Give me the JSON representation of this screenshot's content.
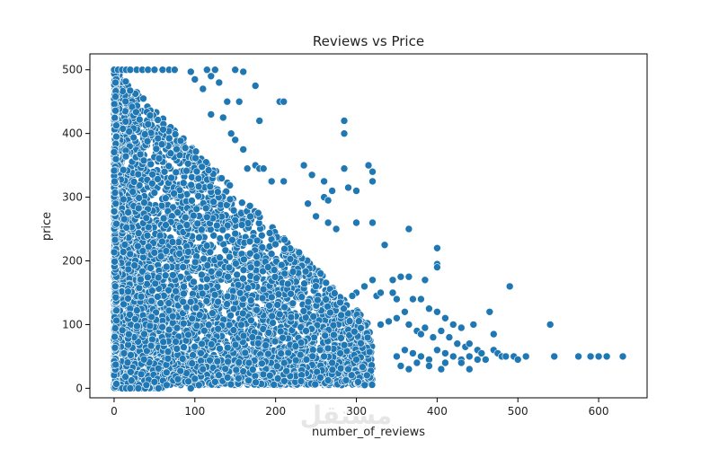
{
  "watermark": "مستقل",
  "chart_data": {
    "type": "scatter",
    "title": "Reviews vs Price",
    "xlabel": "number_of_reviews",
    "ylabel": "price",
    "xlim": [
      -30,
      660
    ],
    "ylim": [
      -15,
      525
    ],
    "x_ticks": [
      0,
      100,
      200,
      300,
      400,
      500,
      600
    ],
    "y_ticks": [
      0,
      100,
      200,
      300,
      400,
      500
    ],
    "grid": false,
    "marker_color": "#1f77b4",
    "marker_edge": "#ffffff",
    "dense_region": {
      "description_note": "very dense overplotted cloud",
      "x_range": [
        0,
        320
      ],
      "y_range": [
        0,
        500
      ]
    },
    "points": [
      [
        0,
        500
      ],
      [
        5,
        500
      ],
      [
        10,
        500
      ],
      [
        15,
        500
      ],
      [
        20,
        500
      ],
      [
        28,
        500
      ],
      [
        35,
        500
      ],
      [
        42,
        500
      ],
      [
        50,
        500
      ],
      [
        60,
        500
      ],
      [
        68,
        500
      ],
      [
        75,
        500
      ],
      [
        95,
        497
      ],
      [
        115,
        500
      ],
      [
        125,
        500
      ],
      [
        150,
        500
      ],
      [
        160,
        497
      ],
      [
        100,
        485
      ],
      [
        110,
        470
      ],
      [
        120,
        490
      ],
      [
        130,
        480
      ],
      [
        140,
        450
      ],
      [
        155,
        450
      ],
      [
        175,
        475
      ],
      [
        205,
        450
      ],
      [
        210,
        450
      ],
      [
        120,
        430
      ],
      [
        135,
        425
      ],
      [
        180,
        420
      ],
      [
        285,
        420
      ],
      [
        285,
        400
      ],
      [
        145,
        400
      ],
      [
        150,
        390
      ],
      [
        160,
        375
      ],
      [
        165,
        345
      ],
      [
        175,
        350
      ],
      [
        180,
        345
      ],
      [
        185,
        345
      ],
      [
        195,
        325
      ],
      [
        210,
        325
      ],
      [
        235,
        350
      ],
      [
        245,
        335
      ],
      [
        260,
        325
      ],
      [
        270,
        310
      ],
      [
        285,
        345
      ],
      [
        290,
        315
      ],
      [
        300,
        310
      ],
      [
        320,
        325
      ],
      [
        315,
        350
      ],
      [
        320,
        340
      ],
      [
        260,
        300
      ],
      [
        265,
        295
      ],
      [
        240,
        290
      ],
      [
        250,
        270
      ],
      [
        265,
        260
      ],
      [
        275,
        250
      ],
      [
        300,
        260
      ],
      [
        320,
        260
      ],
      [
        335,
        225
      ],
      [
        365,
        250
      ],
      [
        400,
        220
      ],
      [
        400,
        195
      ],
      [
        400,
        190
      ],
      [
        385,
        170
      ],
      [
        365,
        175
      ],
      [
        355,
        175
      ],
      [
        345,
        170
      ],
      [
        320,
        170
      ],
      [
        310,
        160
      ],
      [
        300,
        150
      ],
      [
        295,
        145
      ],
      [
        325,
        145
      ],
      [
        330,
        150
      ],
      [
        345,
        150
      ],
      [
        350,
        140
      ],
      [
        370,
        140
      ],
      [
        380,
        140
      ],
      [
        390,
        125
      ],
      [
        400,
        120
      ],
      [
        410,
        110
      ],
      [
        420,
        100
      ],
      [
        430,
        95
      ],
      [
        330,
        100
      ],
      [
        340,
        105
      ],
      [
        350,
        110
      ],
      [
        360,
        120
      ],
      [
        365,
        100
      ],
      [
        375,
        90
      ],
      [
        380,
        85
      ],
      [
        385,
        95
      ],
      [
        395,
        80
      ],
      [
        405,
        90
      ],
      [
        415,
        80
      ],
      [
        425,
        70
      ],
      [
        435,
        65
      ],
      [
        440,
        70
      ],
      [
        450,
        60
      ],
      [
        360,
        60
      ],
      [
        370,
        55
      ],
      [
        380,
        50
      ],
      [
        390,
        45
      ],
      [
        400,
        60
      ],
      [
        410,
        55
      ],
      [
        420,
        50
      ],
      [
        430,
        45
      ],
      [
        440,
        50
      ],
      [
        450,
        45
      ],
      [
        455,
        55
      ],
      [
        460,
        45
      ],
      [
        470,
        60
      ],
      [
        475,
        55
      ],
      [
        480,
        50
      ],
      [
        490,
        160
      ],
      [
        465,
        120
      ],
      [
        445,
        100
      ],
      [
        470,
        85
      ],
      [
        485,
        50
      ],
      [
        495,
        50
      ],
      [
        500,
        45
      ],
      [
        510,
        50
      ],
      [
        540,
        100
      ],
      [
        545,
        50
      ],
      [
        575,
        50
      ],
      [
        590,
        50
      ],
      [
        600,
        50
      ],
      [
        610,
        50
      ],
      [
        630,
        50
      ],
      [
        350,
        50
      ],
      [
        355,
        35
      ],
      [
        365,
        30
      ],
      [
        375,
        40
      ],
      [
        390,
        35
      ],
      [
        405,
        30
      ],
      [
        410,
        40
      ],
      [
        430,
        40
      ],
      [
        440,
        30
      ],
      [
        300,
        45
      ],
      [
        290,
        30
      ],
      [
        280,
        55
      ],
      [
        270,
        40
      ],
      [
        260,
        50
      ],
      [
        255,
        60
      ],
      [
        55,
        0
      ],
      [
        95,
        0
      ],
      [
        100,
        15
      ],
      [
        105,
        5
      ],
      [
        110,
        30
      ],
      [
        125,
        10
      ],
      [
        10,
        0
      ],
      [
        15,
        0
      ],
      [
        20,
        0
      ],
      [
        30,
        0
      ],
      [
        40,
        5
      ],
      [
        50,
        10
      ],
      [
        65,
        5
      ]
    ]
  }
}
